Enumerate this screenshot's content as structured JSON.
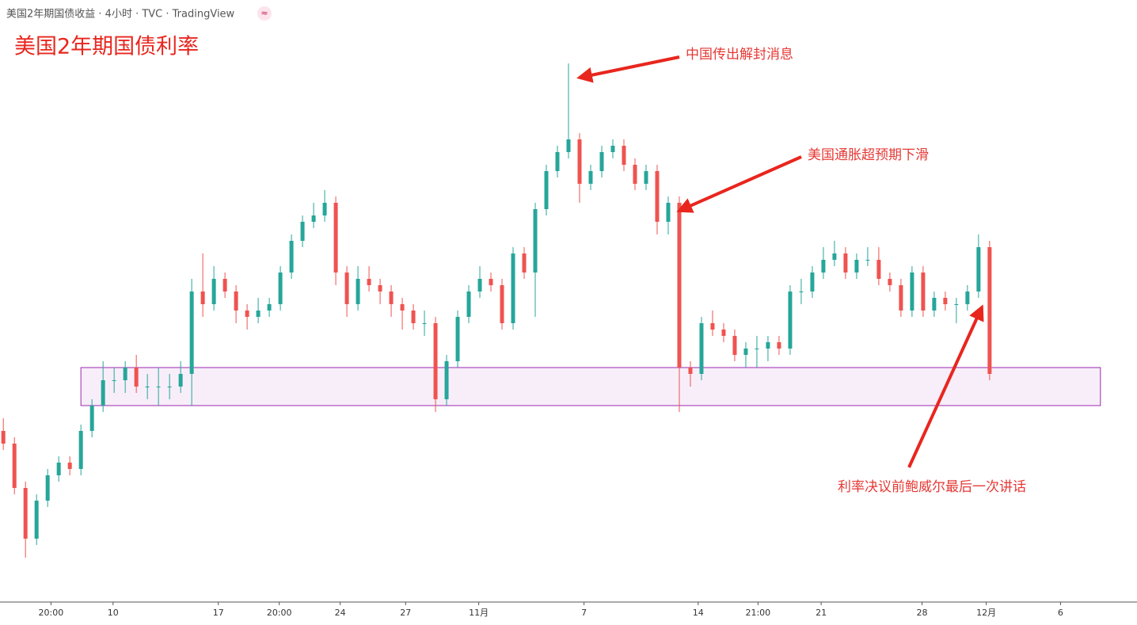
{
  "header": {
    "title": "美国2年期国债收益 · 4小时 · TVC · TradingView",
    "badge": "≈"
  },
  "chart_data": {
    "type": "candlestick",
    "title": "美国2年期国债利率",
    "up_color": "#26a69a",
    "down_color": "#ef5350",
    "open": [
      4.27,
      4.25,
      4.18,
      4.1,
      4.16,
      4.2,
      4.22,
      4.21,
      4.27,
      4.31,
      4.35,
      4.35,
      4.37,
      4.34,
      4.34,
      4.34,
      4.34,
      4.36,
      4.49,
      4.47,
      4.51,
      4.49,
      4.46,
      4.45,
      4.46,
      4.47,
      4.52,
      4.57,
      4.6,
      4.61,
      4.63,
      4.52,
      4.47,
      4.51,
      4.5,
      4.49,
      4.47,
      4.46,
      4.44,
      4.44,
      4.32,
      4.38,
      4.45,
      4.49,
      4.51,
      4.5,
      4.44,
      4.55,
      4.52,
      4.62,
      4.68,
      4.71,
      4.73,
      4.66,
      4.68,
      4.71,
      4.72,
      4.69,
      4.66,
      4.68,
      4.6,
      4.63,
      4.37,
      4.36,
      4.44,
      4.43,
      4.42,
      4.39,
      4.4,
      4.4,
      4.41,
      4.4,
      4.49,
      4.49,
      4.52,
      4.54,
      4.55,
      4.52,
      4.54,
      4.54,
      4.51,
      4.5,
      4.46,
      4.52,
      4.46,
      4.48,
      4.47,
      4.47,
      4.49,
      4.56
    ],
    "high": [
      4.29,
      4.26,
      4.19,
      4.17,
      4.21,
      4.23,
      4.23,
      4.28,
      4.32,
      4.38,
      4.37,
      4.38,
      4.39,
      4.36,
      4.37,
      4.36,
      4.38,
      4.51,
      4.55,
      4.53,
      4.52,
      4.5,
      4.47,
      4.48,
      4.48,
      4.53,
      4.58,
      4.61,
      4.63,
      4.65,
      4.64,
      4.53,
      4.53,
      4.53,
      4.51,
      4.5,
      4.48,
      4.47,
      4.46,
      4.45,
      4.39,
      4.46,
      4.5,
      4.53,
      4.52,
      4.51,
      4.56,
      4.56,
      4.63,
      4.69,
      4.72,
      4.85,
      4.74,
      4.69,
      4.72,
      4.73,
      4.73,
      4.7,
      4.69,
      4.69,
      4.64,
      4.64,
      4.38,
      4.45,
      4.46,
      4.44,
      4.43,
      4.41,
      4.42,
      4.42,
      4.42,
      4.5,
      4.51,
      4.53,
      4.56,
      4.57,
      4.56,
      4.55,
      4.56,
      4.56,
      4.52,
      4.51,
      4.53,
      4.53,
      4.49,
      4.49,
      4.48,
      4.5,
      4.58,
      4.57
    ],
    "low": [
      4.24,
      4.17,
      4.07,
      4.09,
      4.15,
      4.19,
      4.2,
      4.2,
      4.26,
      4.3,
      4.33,
      4.33,
      4.33,
      4.32,
      4.31,
      4.32,
      4.33,
      4.31,
      4.45,
      4.46,
      4.48,
      4.44,
      4.43,
      4.44,
      4.45,
      4.46,
      4.51,
      4.56,
      4.59,
      4.6,
      4.5,
      4.45,
      4.46,
      4.49,
      4.47,
      4.45,
      4.43,
      4.43,
      4.42,
      4.3,
      4.31,
      4.37,
      4.44,
      4.48,
      4.49,
      4.43,
      4.43,
      4.51,
      4.45,
      4.61,
      4.67,
      4.7,
      4.63,
      4.65,
      4.67,
      4.7,
      4.68,
      4.65,
      4.65,
      4.58,
      4.58,
      4.3,
      4.34,
      4.35,
      4.42,
      4.41,
      4.38,
      4.37,
      4.37,
      4.38,
      4.39,
      4.39,
      4.47,
      4.48,
      4.51,
      4.53,
      4.51,
      4.51,
      4.53,
      4.5,
      4.49,
      4.45,
      4.45,
      4.45,
      4.45,
      4.46,
      4.44,
      4.46,
      4.48,
      4.35
    ],
    "close": [
      4.25,
      4.18,
      4.1,
      4.16,
      4.2,
      4.22,
      4.21,
      4.27,
      4.31,
      4.35,
      4.35,
      4.37,
      4.34,
      4.34,
      4.34,
      4.34,
      4.36,
      4.49,
      4.47,
      4.51,
      4.49,
      4.46,
      4.45,
      4.46,
      4.47,
      4.52,
      4.57,
      4.6,
      4.61,
      4.63,
      4.52,
      4.47,
      4.51,
      4.5,
      4.49,
      4.47,
      4.46,
      4.44,
      4.44,
      4.32,
      4.38,
      4.45,
      4.49,
      4.51,
      4.5,
      4.44,
      4.55,
      4.52,
      4.62,
      4.68,
      4.71,
      4.73,
      4.66,
      4.68,
      4.71,
      4.72,
      4.69,
      4.66,
      4.68,
      4.6,
      4.63,
      4.37,
      4.36,
      4.44,
      4.43,
      4.42,
      4.39,
      4.4,
      4.4,
      4.41,
      4.4,
      4.49,
      4.49,
      4.52,
      4.54,
      4.55,
      4.52,
      4.54,
      4.54,
      4.51,
      4.5,
      4.46,
      4.52,
      4.46,
      4.48,
      4.47,
      4.47,
      4.49,
      4.56,
      4.36
    ],
    "xlim": [
      -0.3,
      102.3
    ],
    "ylim": [
      4.0,
      4.95
    ],
    "xticks": [
      {
        "value": 4.3,
        "label": "20:00"
      },
      {
        "value": 9.9,
        "label": "10"
      },
      {
        "value": 19.4,
        "label": "17"
      },
      {
        "value": 24.9,
        "label": "20:00"
      },
      {
        "value": 30.4,
        "label": "24"
      },
      {
        "value": 36.3,
        "label": "27"
      },
      {
        "value": 42.9,
        "label": "11月"
      },
      {
        "value": 52.4,
        "label": "7"
      },
      {
        "value": 62.7,
        "label": "14"
      },
      {
        "value": 68.1,
        "label": "21:00"
      },
      {
        "value": 73.8,
        "label": "21"
      },
      {
        "value": 82.9,
        "label": "28"
      },
      {
        "value": 88.7,
        "label": "12月"
      },
      {
        "value": 95.4,
        "label": "6"
      }
    ],
    "zone": {
      "x": [
        7,
        99
      ],
      "y": [
        4.31,
        4.37
      ],
      "color": "#9c27b0"
    },
    "annotations": [
      "中国传出解封消息",
      "美国通胀超预期下滑",
      "利率决议前鲍威尔最后一次讲话"
    ]
  }
}
